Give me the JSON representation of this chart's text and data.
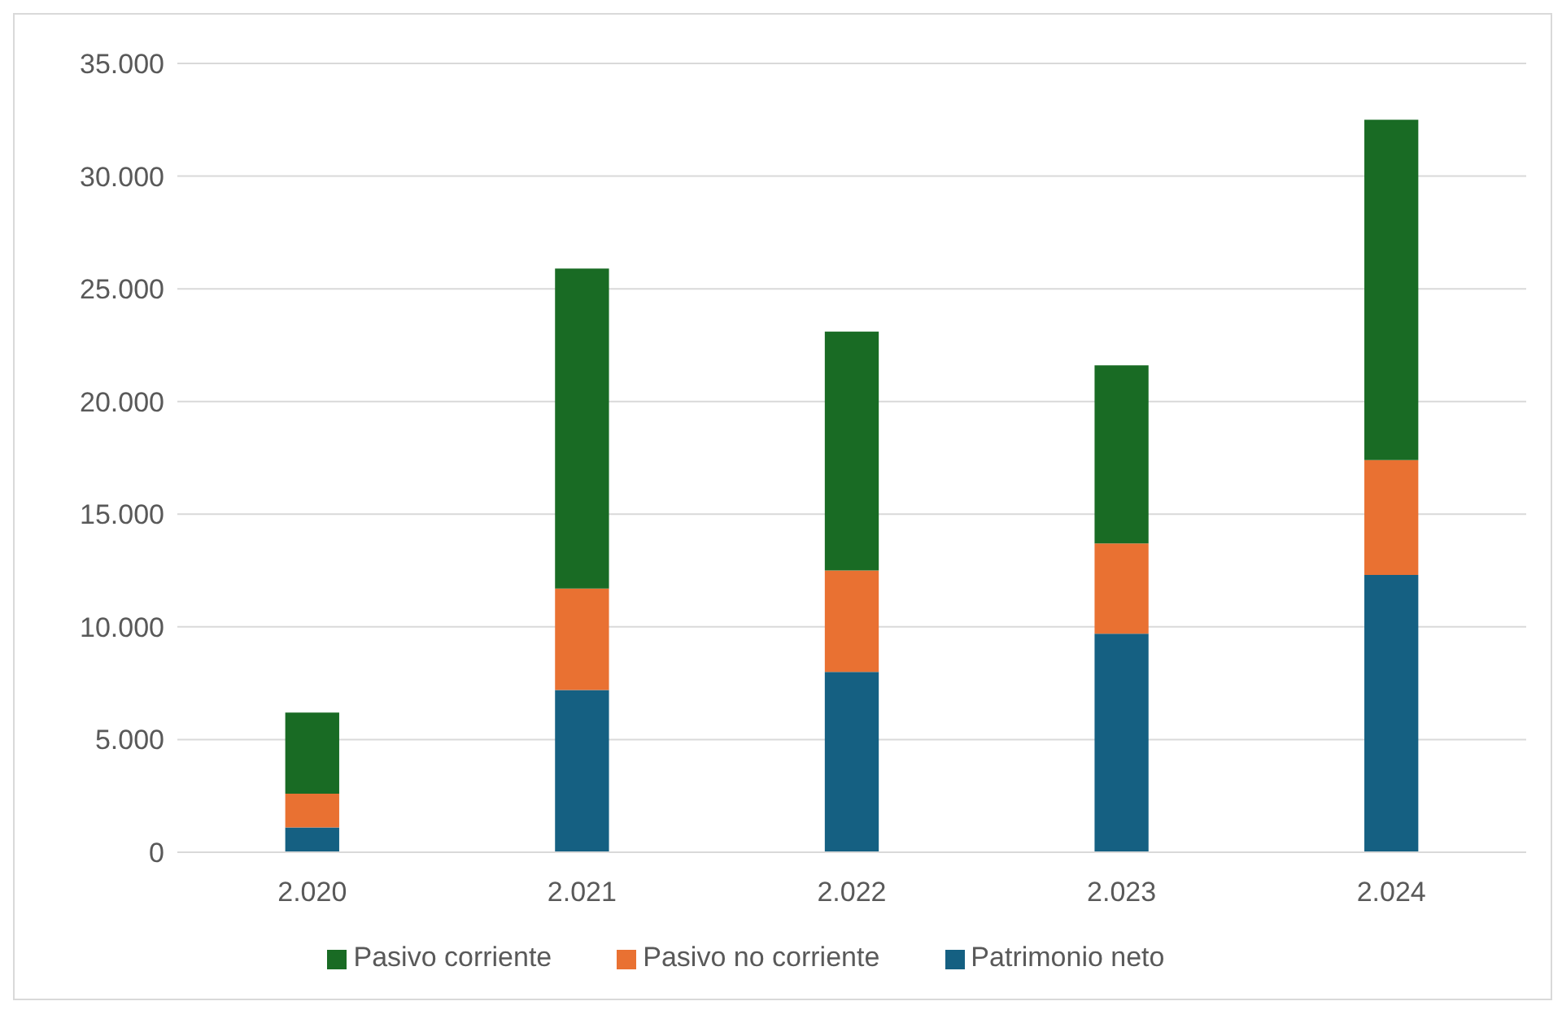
{
  "chart_data": {
    "type": "bar",
    "stacked": true,
    "categories": [
      "2.020",
      "2.021",
      "2.022",
      "2.023",
      "2.024"
    ],
    "series": [
      {
        "name": "Patrimonio neto",
        "color": "#156082",
        "values": [
          1100,
          7200,
          8000,
          9700,
          12300
        ]
      },
      {
        "name": "Pasivo no corriente",
        "color": "#e97132",
        "values": [
          1500,
          4500,
          4500,
          4000,
          5100
        ]
      },
      {
        "name": "Pasivo corriente",
        "color": "#196b24",
        "values": [
          3600,
          14200,
          10600,
          7900,
          15100
        ]
      }
    ],
    "ylim": [
      0,
      35000
    ],
    "yticks": [
      {
        "value": 0,
        "label": "0"
      },
      {
        "value": 5000,
        "label": "5.000"
      },
      {
        "value": 10000,
        "label": "10.000"
      },
      {
        "value": 15000,
        "label": "15.000"
      },
      {
        "value": 20000,
        "label": "20.000"
      },
      {
        "value": 25000,
        "label": "25.000"
      },
      {
        "value": 30000,
        "label": "30.000"
      },
      {
        "value": 35000,
        "label": "35.000"
      }
    ],
    "grid": "y",
    "legend": "bottom"
  }
}
